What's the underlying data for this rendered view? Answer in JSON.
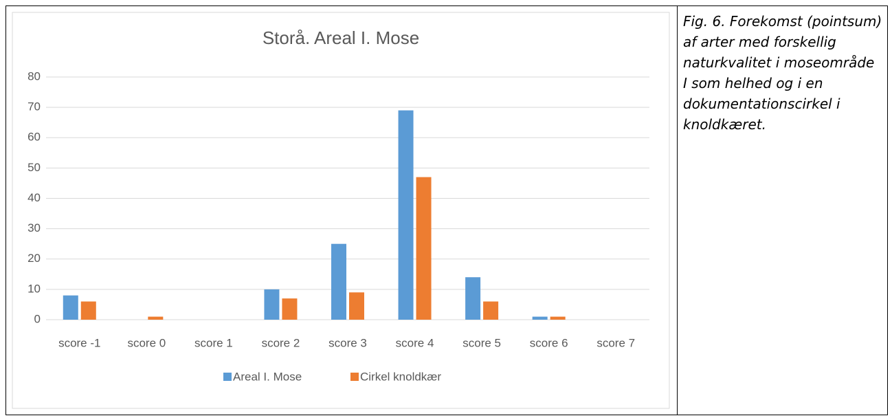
{
  "chart_data": {
    "type": "bar",
    "title": "Storå. Areal I. Mose",
    "categories": [
      "score -1",
      "score 0",
      "score 1",
      "score 2",
      "score 3",
      "score 4",
      "score 5",
      "score 6",
      "score 7"
    ],
    "series": [
      {
        "name": "Areal I. Mose",
        "color": "#5b9bd5",
        "values": [
          8,
          0,
          0,
          10,
          25,
          69,
          14,
          1,
          0
        ]
      },
      {
        "name": "Cirkel knoldkær",
        "color": "#ed7d31",
        "values": [
          6,
          1,
          0,
          7,
          9,
          47,
          6,
          1,
          0
        ]
      }
    ],
    "ylim": [
      0,
      80
    ],
    "yticks": [
      0,
      10,
      20,
      30,
      40,
      50,
      60,
      70,
      80
    ],
    "grid": true,
    "legend": "bottom"
  },
  "caption": "Fig. 6. Forekomst (pointsum) af arter med forskellig naturkvalitet i moseområde I som helhed og i en dokumentationscirkel i knoldkæret."
}
